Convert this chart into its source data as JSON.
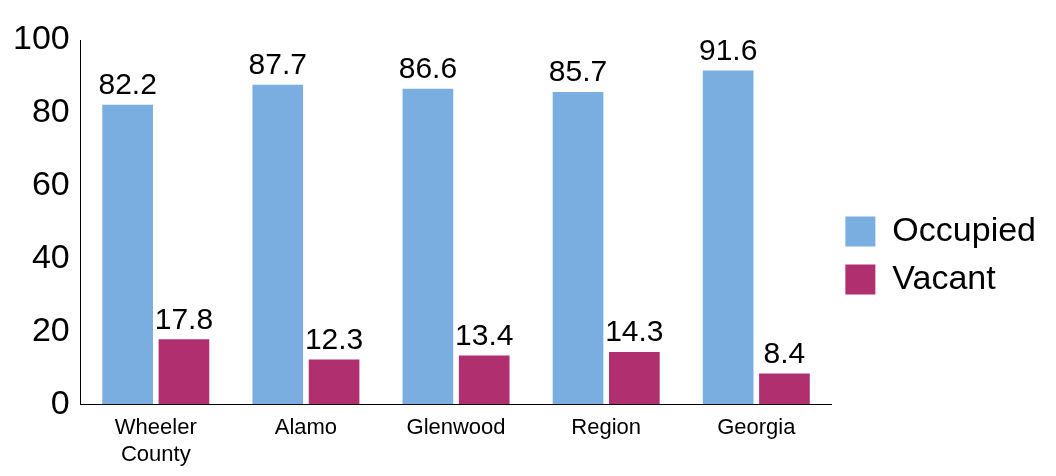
{
  "chart_data": {
    "type": "bar",
    "categories": [
      "Wheeler County",
      "Alamo",
      "Glenwood",
      "Region",
      "Georgia"
    ],
    "series": [
      {
        "name": "Occupied",
        "color": "#7aaee0",
        "values": [
          82.2,
          87.7,
          86.6,
          85.7,
          91.6
        ]
      },
      {
        "name": "Vacant",
        "color": "#b0306f",
        "values": [
          17.8,
          12.3,
          13.4,
          14.3,
          8.4
        ]
      }
    ],
    "ylim": [
      0,
      100
    ],
    "yticks": [
      0,
      20,
      40,
      60,
      80,
      100
    ],
    "grid": false,
    "legend": "right",
    "data_labels": true
  }
}
